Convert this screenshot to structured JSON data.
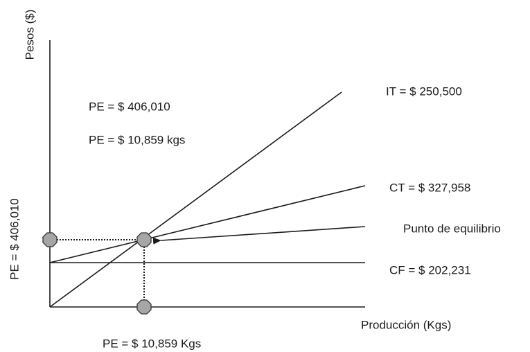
{
  "axes": {
    "y_label": "Pesos ($)",
    "x_label": "Producción (Kgs)"
  },
  "annotations": {
    "pe_pesos": "PE = $ 406,010",
    "pe_kgs": "PE = $ 10,859 kgs",
    "pe_pesos_axis": "PE = $ 406,010",
    "pe_kgs_axis": "PE = $ 10,859 Kgs"
  },
  "lines": {
    "it": "IT = $ 250,500",
    "ct": "CT = $ 327,958",
    "cf": "CF = $ 202,231",
    "breakeven": "Punto de equilibrio"
  }
}
